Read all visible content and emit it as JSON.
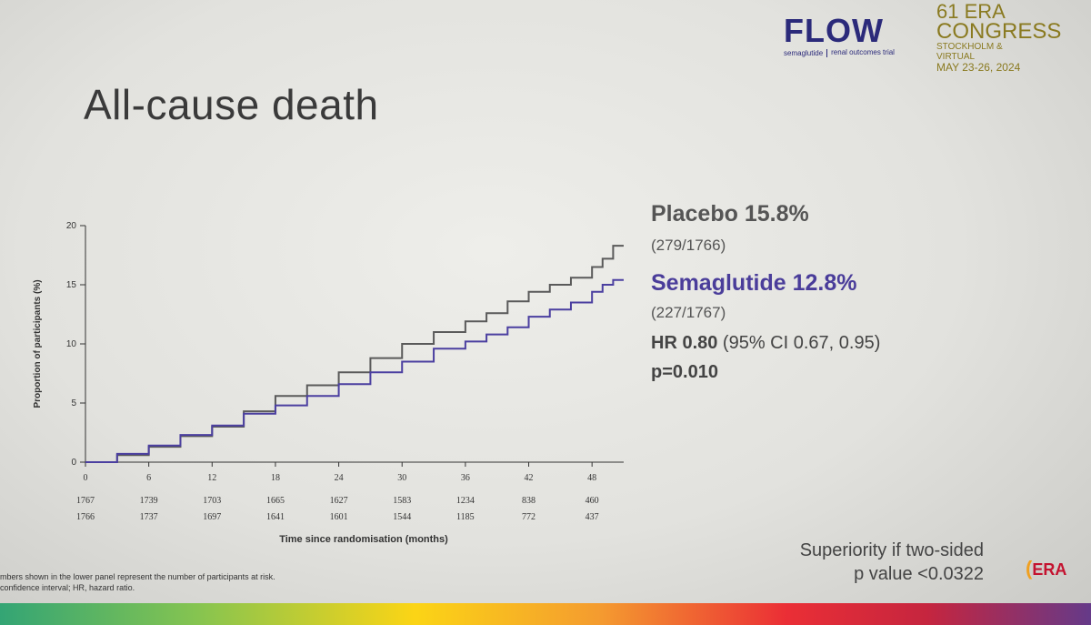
{
  "slide": {
    "title": "All-cause death",
    "flow_logo": {
      "word": "FLOW",
      "sub1": "semaglutide",
      "sub2": "renal outcomes trial"
    },
    "era_logo": {
      "line1": "61 ERA",
      "line2": "CONGRESS",
      "line3": "STOCKHOLM & VIRTUAL",
      "line4": "MAY 23-26, 2024"
    },
    "legend": {
      "placebo_label": "Placebo 15.8%",
      "placebo_n": "(279/1766)",
      "sema_label": "Semaglutide 12.8%",
      "sema_n": "(227/1767)",
      "hr_bold": "HR 0.80",
      "hr_ci": " (95% CI 0.67, 0.95)",
      "pval": "p=0.010"
    },
    "superiority": {
      "line1": "Superiority if two-sided",
      "line2": "p value <0.0322"
    },
    "footnote": {
      "line1": "mbers shown in the lower panel represent the number of participants at risk.",
      "line2": "confidence interval; HR, hazard ratio."
    },
    "era_badge": "ERA"
  },
  "chart_data": {
    "type": "line",
    "title": "All-cause death",
    "xlabel": "Time since randomisation (months)",
    "ylabel": "Proportion of participants (%)",
    "xlim": [
      0,
      51
    ],
    "ylim": [
      0,
      20
    ],
    "xticks": [
      0,
      6,
      12,
      18,
      24,
      30,
      36,
      42,
      48
    ],
    "yticks": [
      0,
      5,
      10,
      15,
      20
    ],
    "colors": {
      "placebo": "#5a5a5a",
      "semaglutide": "#4b3fa0"
    },
    "series": [
      {
        "name": "Placebo",
        "x": [
          0,
          3,
          6,
          9,
          12,
          15,
          18,
          21,
          24,
          27,
          30,
          33,
          36,
          38,
          40,
          42,
          44,
          46,
          48,
          49,
          50,
          51
        ],
        "y": [
          0,
          0.6,
          1.3,
          2.2,
          3.0,
          4.3,
          5.6,
          6.5,
          7.6,
          8.8,
          10.0,
          11.0,
          11.9,
          12.6,
          13.6,
          14.4,
          15.0,
          15.6,
          16.5,
          17.2,
          18.3,
          18.3
        ],
        "at_risk": [
          1766,
          1737,
          1697,
          1641,
          1601,
          1544,
          1185,
          772,
          437
        ]
      },
      {
        "name": "Semaglutide",
        "x": [
          0,
          3,
          6,
          9,
          12,
          15,
          18,
          21,
          24,
          27,
          30,
          33,
          36,
          38,
          40,
          42,
          44,
          46,
          48,
          49,
          50,
          51
        ],
        "y": [
          0,
          0.7,
          1.4,
          2.3,
          3.1,
          4.1,
          4.8,
          5.6,
          6.6,
          7.6,
          8.5,
          9.6,
          10.2,
          10.8,
          11.4,
          12.3,
          12.9,
          13.5,
          14.4,
          15.0,
          15.4,
          15.4
        ],
        "at_risk": [
          1767,
          1739,
          1703,
          1665,
          1627,
          1583,
          1234,
          838,
          460
        ]
      }
    ]
  }
}
